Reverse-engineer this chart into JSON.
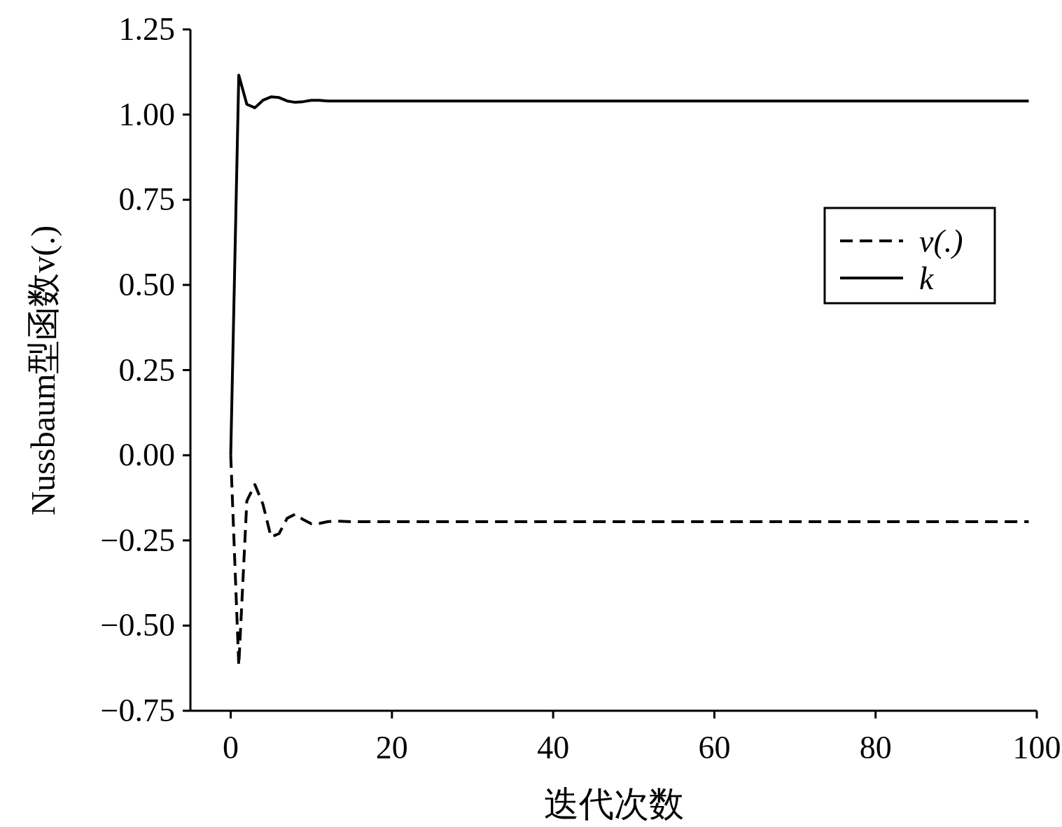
{
  "chart_data": {
    "type": "line",
    "xlabel": "迭代次数",
    "ylabel": "Nussbaum型函数v(.)",
    "xlim": [
      -5,
      100
    ],
    "ylim": [
      -0.75,
      1.25
    ],
    "xticks": [
      0,
      20,
      40,
      60,
      80,
      100
    ],
    "yticks": [
      {
        "value": -0.75,
        "label": "−0.75"
      },
      {
        "value": -0.5,
        "label": "−0.50"
      },
      {
        "value": -0.25,
        "label": "−0.25"
      },
      {
        "value": 0,
        "label": "0.00"
      },
      {
        "value": 0.25,
        "label": "0.25"
      },
      {
        "value": 0.5,
        "label": "0.50"
      },
      {
        "value": 0.75,
        "label": "0.75"
      },
      {
        "value": 1,
        "label": "1.00"
      },
      {
        "value": 1.25,
        "label": "1.25"
      }
    ],
    "grid": false,
    "legend": "top right",
    "marker": "none",
    "series": [
      {
        "name": "v(.)",
        "color": "#000000",
        "line_style": "dashed",
        "x": [
          0,
          1,
          2,
          3,
          4,
          5,
          6,
          7,
          8,
          9,
          10,
          11,
          12,
          13,
          15,
          20,
          30,
          40,
          50,
          60,
          70,
          80,
          90,
          99
        ],
        "values": [
          0,
          -0.617,
          -0.134,
          -0.086,
          -0.144,
          -0.24,
          -0.23,
          -0.185,
          -0.173,
          -0.189,
          -0.201,
          -0.2,
          -0.195,
          -0.193,
          -0.195,
          -0.195,
          -0.195,
          -0.195,
          -0.195,
          -0.195,
          -0.195,
          -0.195,
          -0.195,
          -0.195
        ]
      },
      {
        "name": "k",
        "color": "#000000",
        "line_style": "solid",
        "x": [
          0,
          1,
          2,
          3,
          4,
          5,
          6,
          7,
          8,
          9,
          10,
          11,
          12,
          13,
          15,
          20,
          30,
          40,
          50,
          60,
          70,
          80,
          90,
          99
        ],
        "values": [
          0,
          1.116,
          1.03,
          1.02,
          1.042,
          1.052,
          1.05,
          1.04,
          1.036,
          1.038,
          1.042,
          1.042,
          1.04,
          1.04,
          1.04,
          1.04,
          1.04,
          1.04,
          1.04,
          1.04,
          1.04,
          1.04,
          1.04,
          1.04
        ]
      }
    ]
  }
}
